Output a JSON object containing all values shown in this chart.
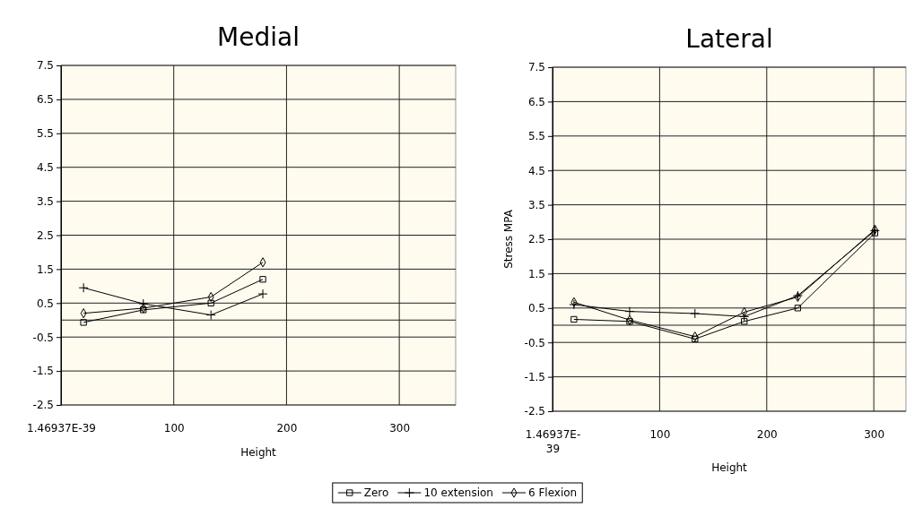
{
  "chart_data": [
    {
      "type": "line",
      "title": "Medial",
      "xlabel": "Height",
      "x": [
        20,
        73,
        133,
        179
      ],
      "series": [
        {
          "name": "Zero",
          "color": "#000000",
          "marker": "square",
          "values": [
            -0.07,
            0.3,
            0.5,
            1.2
          ]
        },
        {
          "name": "10 extension",
          "color": "#000000",
          "marker": "cross",
          "values": [
            0.95,
            0.48,
            0.15,
            0.77
          ]
        },
        {
          "name": "6 Flexion",
          "color": "#000000",
          "marker": "diamond",
          "values": [
            0.2,
            0.35,
            0.68,
            1.7
          ]
        }
      ],
      "xlim": [
        0,
        350
      ],
      "xticks": [
        {
          "value": 0,
          "label": "1.46937E-39"
        },
        100,
        200,
        300
      ],
      "ylim": [
        -2.5,
        7.5
      ],
      "yticks": [
        -2.5,
        -1.5,
        -0.5,
        0.5,
        1.5,
        2.5,
        3.5,
        4.5,
        5.5,
        6.5,
        7.5
      ],
      "ref_lines": [
        {
          "axis": "y",
          "value": 0
        }
      ],
      "grid": true,
      "legend": "bottom"
    },
    {
      "type": "line",
      "title": "Lateral",
      "xlabel": "Height",
      "ylabel": "Stress MPA",
      "x": [
        20,
        72,
        133,
        179,
        229,
        301
      ],
      "series": [
        {
          "name": "Zero",
          "color": "#000000",
          "marker": "square",
          "values": [
            0.17,
            0.11,
            -0.4,
            0.11,
            0.5,
            2.68
          ]
        },
        {
          "name": "10 extension",
          "color": "#000000",
          "marker": "cross",
          "values": [
            0.6,
            0.4,
            0.34,
            0.25,
            0.86,
            2.75
          ]
        },
        {
          "name": "6 Flexion",
          "color": "#000000",
          "marker": "diamond",
          "values": [
            0.67,
            0.15,
            -0.33,
            0.38,
            0.82,
            2.78
          ]
        }
      ],
      "xlim": [
        0,
        330
      ],
      "xticks": [
        {
          "value": 0,
          "label": "1.46937E-\n39"
        },
        100,
        200,
        300
      ],
      "ylim": [
        -2.5,
        7.5
      ],
      "yticks": [
        -2.5,
        -1.5,
        -0.5,
        0.5,
        1.5,
        2.5,
        3.5,
        4.5,
        5.5,
        6.5,
        7.5
      ],
      "ref_lines": [
        {
          "axis": "y",
          "value": 0
        }
      ],
      "grid": true,
      "legend": "bottom"
    }
  ]
}
